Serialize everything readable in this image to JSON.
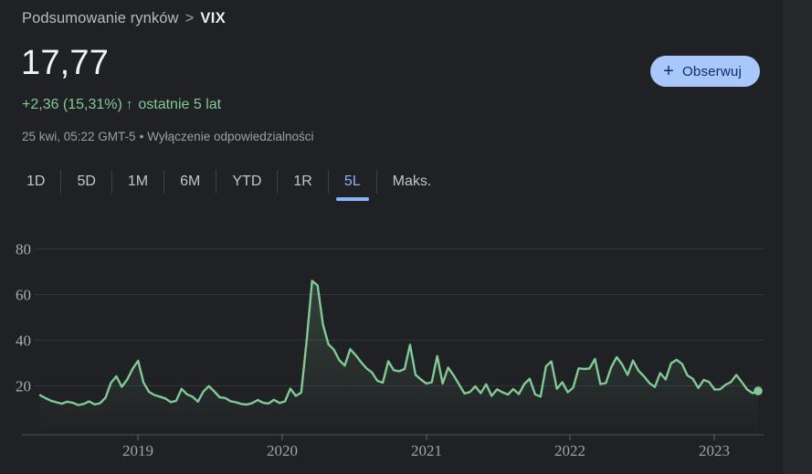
{
  "breadcrumb": {
    "section": "Podsumowanie rynków",
    "separator": ">",
    "current": "VIX"
  },
  "quote": {
    "price": "17,77",
    "change": "+2,36 (15,31%)",
    "arrow": "↑",
    "period_label": "ostatnie 5 lat"
  },
  "meta": {
    "datetime": "25 kwi, 05:22 GMT-5",
    "bullet": "•",
    "disclaimer": "Wyłączenie odpowiedzialności"
  },
  "follow_button": {
    "plus": "+",
    "label": "Obserwuj"
  },
  "range_tabs": [
    {
      "label": "1D",
      "selected": false
    },
    {
      "label": "5D",
      "selected": false
    },
    {
      "label": "1M",
      "selected": false
    },
    {
      "label": "6M",
      "selected": false
    },
    {
      "label": "YTD",
      "selected": false
    },
    {
      "label": "1R",
      "selected": false
    },
    {
      "label": "5L",
      "selected": true
    },
    {
      "label": "Maks.",
      "selected": false
    }
  ],
  "colors": {
    "background": "#202124",
    "line_green": "#81c995",
    "change_green": "#81c995",
    "tab_selected_blue": "#8ab4f8",
    "button_bg": "#a8c7fa",
    "button_text": "#0a2e6e",
    "gridline": "#32353a",
    "axis_line": "#45484d",
    "tick": "#5f6368"
  },
  "chart_data": {
    "type": "line",
    "title": "VIX — ostatnie 5 lat",
    "xlabel": "",
    "ylabel": "",
    "x_ticks": [
      "2019",
      "2020",
      "2021",
      "2022",
      "2023"
    ],
    "y_ticks": [
      20,
      40,
      60,
      80
    ],
    "ylim": [
      0,
      90
    ],
    "x_range_years": 5,
    "end_value": 17.77,
    "peak_value": 66.0,
    "grid": true,
    "legend": "none",
    "series": [
      {
        "name": "VIX",
        "cadence": "biweekly (kwi 2018 – 25 kwi 2023)",
        "values": [
          15.9,
          14.6,
          13.5,
          12.8,
          12.2,
          13.1,
          12.6,
          11.6,
          12.1,
          13.2,
          11.9,
          12.4,
          14.8,
          21.3,
          24.2,
          19.6,
          22.8,
          27.5,
          31.0,
          21.5,
          17.4,
          16.0,
          15.3,
          14.5,
          12.9,
          13.5,
          18.7,
          16.3,
          15.3,
          13.1,
          17.5,
          19.9,
          17.6,
          15.0,
          14.7,
          13.3,
          12.8,
          12.1,
          11.8,
          12.5,
          13.8,
          12.6,
          12.3,
          13.9,
          12.5,
          13.2,
          18.8,
          15.6,
          17.1,
          40.1,
          66.0,
          64.0,
          46.8,
          38.2,
          35.9,
          31.2,
          28.9,
          36.1,
          33.5,
          30.4,
          27.7,
          25.9,
          22.2,
          21.4,
          30.8,
          26.9,
          26.4,
          27.4,
          38.0,
          24.9,
          22.8,
          21.0,
          21.6,
          33.1,
          21.0,
          28.0,
          24.7,
          20.7,
          16.7,
          17.3,
          19.8,
          16.8,
          20.7,
          15.6,
          18.5,
          17.2,
          16.2,
          18.6,
          16.4,
          20.8,
          23.1,
          16.3,
          15.3,
          28.6,
          30.7,
          18.7,
          21.6,
          17.2,
          19.2,
          27.7,
          27.4,
          27.6,
          31.8,
          20.8,
          21.2,
          28.2,
          32.6,
          29.4,
          24.8,
          31.1,
          26.7,
          24.2,
          21.3,
          19.5,
          25.6,
          22.8,
          29.9,
          31.4,
          29.7,
          24.6,
          23.1,
          19.1,
          22.6,
          21.7,
          18.4,
          18.5,
          20.5,
          21.7,
          24.8,
          21.7,
          18.4,
          16.8,
          17.77
        ]
      }
    ]
  }
}
